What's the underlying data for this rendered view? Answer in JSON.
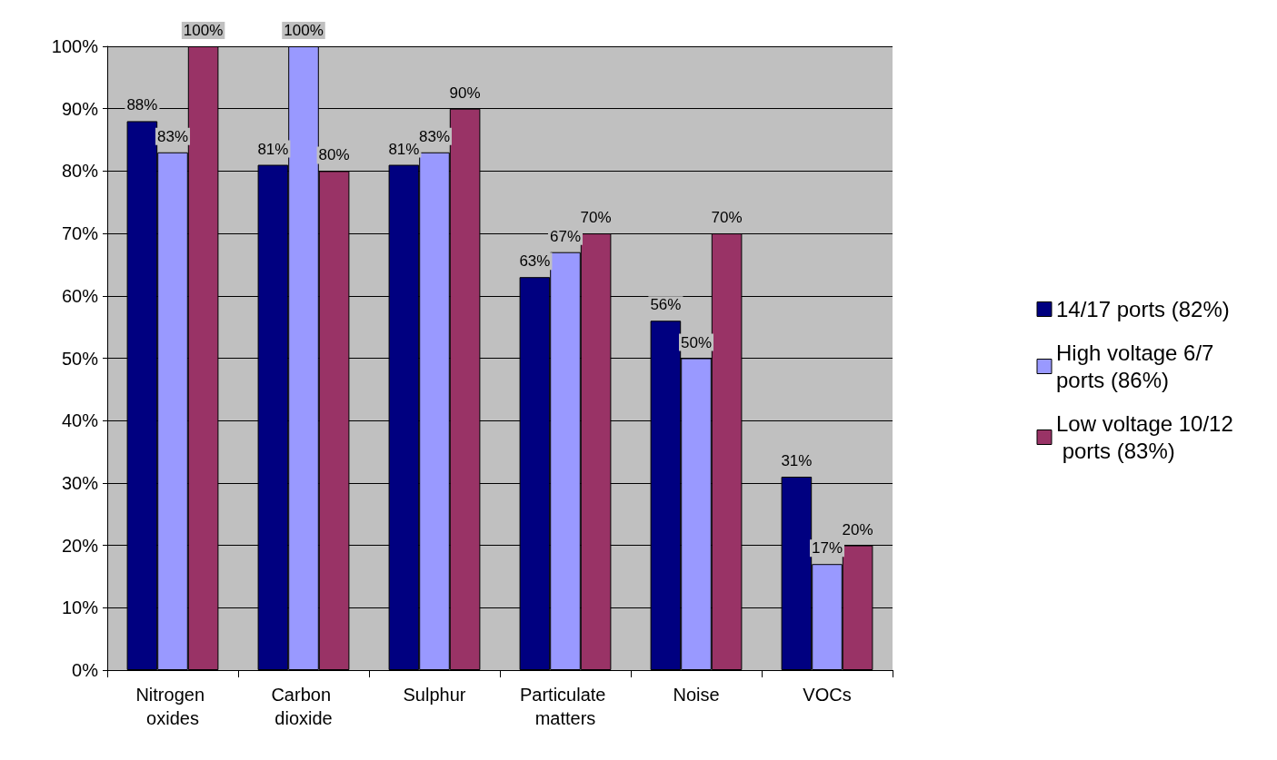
{
  "chart_data": {
    "type": "bar",
    "categories": [
      "Nitrogen oxides",
      "Carbon dioxide",
      "Sulphur",
      "Particulate matters",
      "Noise",
      "VOCs"
    ],
    "series": [
      {
        "name": "14/17 ports (82%)",
        "color": "#000080",
        "values": [
          88,
          81,
          81,
          63,
          56,
          31
        ],
        "value_labels": [
          "88%",
          "81%",
          "81%",
          "63%",
          "56%",
          "31%"
        ]
      },
      {
        "name": "High voltage 6/7 ports (86%)",
        "color": "#9999ff",
        "values": [
          83,
          100,
          83,
          67,
          50,
          17
        ],
        "value_labels": [
          "83%",
          "100%",
          "83%",
          "67%",
          "50%",
          "17%"
        ]
      },
      {
        "name": "Low voltage 10/12 ports (83%)",
        "color": "#993366",
        "values": [
          100,
          80,
          90,
          70,
          70,
          20
        ],
        "value_labels": [
          "100%",
          "80%",
          "90%",
          "70%",
          "70%",
          "20%"
        ]
      }
    ],
    "ylim": [
      0,
      100
    ],
    "yticks": [
      {
        "value": 0,
        "label": "0%"
      },
      {
        "value": 10,
        "label": "10%"
      },
      {
        "value": 20,
        "label": "20%"
      },
      {
        "value": 30,
        "label": "30%"
      },
      {
        "value": 40,
        "label": "40%"
      },
      {
        "value": 50,
        "label": "50%"
      },
      {
        "value": 60,
        "label": "60%"
      },
      {
        "value": 70,
        "label": "70%"
      },
      {
        "value": 80,
        "label": "80%"
      },
      {
        "value": 90,
        "label": "90%"
      },
      {
        "value": 100,
        "label": "100%"
      }
    ],
    "grid": "y",
    "legend": "right"
  }
}
